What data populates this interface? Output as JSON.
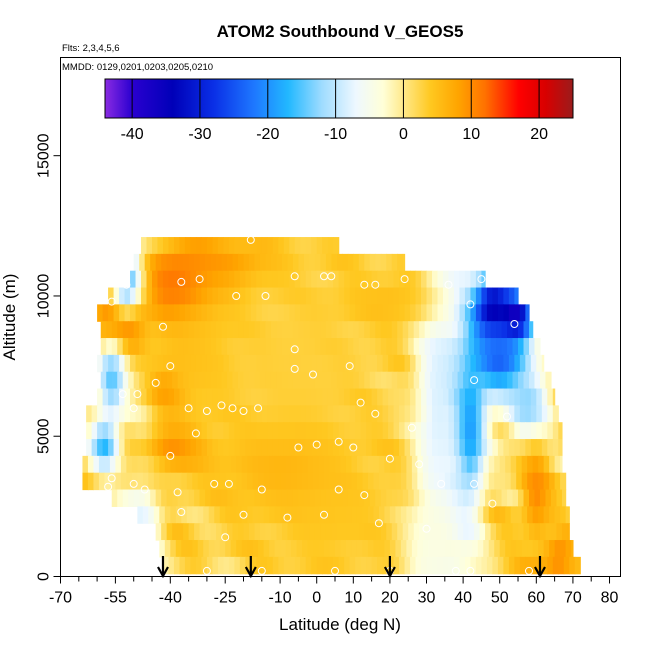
{
  "chart_data": {
    "type": "heatmap",
    "title": "ATOM2 Southbound V_GEOS5",
    "subtitle_line1": "Flts: 2,3,4,5,6",
    "subtitle_line2": "MMDD: 0129,0201,0203,0205,0210",
    "xlabel": "Latitude (deg N)",
    "ylabel": "Altitude (m)",
    "xlim": [
      -70,
      83
    ],
    "ylim": [
      0,
      18500
    ],
    "x_ticks": [
      -70,
      -55,
      -40,
      -25,
      -10,
      0,
      10,
      20,
      30,
      40,
      50,
      60,
      70,
      80
    ],
    "x_ticklabels": [
      "-70",
      "-55",
      "-40",
      "-25",
      "-10",
      "0",
      "10",
      "20",
      "30",
      "40",
      "50",
      "60",
      "70",
      "80"
    ],
    "y_ticks": [
      0,
      5000,
      10000,
      15000
    ],
    "y_ticklabels": [
      "0",
      "5000",
      "10000",
      "15000"
    ],
    "colorbar": {
      "min": -44,
      "max": 25,
      "ticks": [
        -40,
        -30,
        -20,
        -10,
        0,
        10,
        20
      ],
      "ticklabels": [
        "-40",
        "-30",
        "-20",
        "-10",
        "0",
        "10",
        "20"
      ],
      "stops": [
        {
          "v": -44,
          "c": "#8a2be2"
        },
        {
          "v": -40,
          "c": "#2a00d0"
        },
        {
          "v": -34,
          "c": "#0000b8"
        },
        {
          "v": -28,
          "c": "#0a2fe6"
        },
        {
          "v": -22,
          "c": "#1e78ff"
        },
        {
          "v": -17,
          "c": "#22b8ff"
        },
        {
          "v": -12,
          "c": "#9fdcff"
        },
        {
          "v": -7,
          "c": "#eef8ff"
        },
        {
          "v": -3,
          "c": "#ffffd8"
        },
        {
          "v": 0,
          "c": "#ffe98a"
        },
        {
          "v": 4,
          "c": "#ffc820"
        },
        {
          "v": 8,
          "c": "#ffa500"
        },
        {
          "v": 12,
          "c": "#ff7200"
        },
        {
          "v": 17,
          "c": "#ff0000"
        },
        {
          "v": 21,
          "c": "#d80000"
        },
        {
          "v": 25,
          "c": "#9b1c1c"
        }
      ]
    },
    "grid": false,
    "legend_placement": "top (colorbar)",
    "arrow_latitudes": [
      -42,
      -18,
      20,
      61
    ],
    "arrow_color": "#000000",
    "marker_color": "#ffffff",
    "data_extent": {
      "altitude_rows": [
        {
          "alt": 11800,
          "lat_min": -48,
          "lat_max": 6
        },
        {
          "alt": 11200,
          "lat_min": -50,
          "lat_max": 24
        },
        {
          "alt": 10600,
          "lat_min": -51,
          "lat_max": 46
        },
        {
          "alt": 10000,
          "lat_min": -57,
          "lat_max": 55
        },
        {
          "alt": 9400,
          "lat_min": -60,
          "lat_max": 58
        },
        {
          "alt": 8800,
          "lat_min": -59,
          "lat_max": 59
        },
        {
          "alt": 8200,
          "lat_min": -59,
          "lat_max": 61
        },
        {
          "alt": 7600,
          "lat_min": -60,
          "lat_max": 62
        },
        {
          "alt": 7000,
          "lat_min": -59,
          "lat_max": 64
        },
        {
          "alt": 6400,
          "lat_min": -60,
          "lat_max": 65
        },
        {
          "alt": 5800,
          "lat_min": -63,
          "lat_max": 66
        },
        {
          "alt": 5200,
          "lat_min": -63,
          "lat_max": 67
        },
        {
          "alt": 4600,
          "lat_min": -63,
          "lat_max": 67
        },
        {
          "alt": 4000,
          "lat_min": -64,
          "lat_max": 67
        },
        {
          "alt": 3400,
          "lat_min": -64,
          "lat_max": 68
        },
        {
          "alt": 2800,
          "lat_min": -56,
          "lat_max": 68
        },
        {
          "alt": 2200,
          "lat_min": -49,
          "lat_max": 69
        },
        {
          "alt": 1600,
          "lat_min": -44,
          "lat_max": 69
        },
        {
          "alt": 1000,
          "lat_min": -43,
          "lat_max": 70
        },
        {
          "alt": 400,
          "lat_min": -42,
          "lat_max": 72
        }
      ]
    },
    "features": [
      {
        "lat": -36,
        "alt": 10200,
        "v": 19,
        "slat": 11,
        "salt": 1500
      },
      {
        "lat": -53,
        "alt": 9000,
        "v": 18,
        "slat": 7,
        "salt": 1000
      },
      {
        "lat": -25,
        "alt": 11100,
        "v": 14,
        "slat": 16,
        "salt": 800
      },
      {
        "lat": -40,
        "alt": 6700,
        "v": 17,
        "slat": 5,
        "salt": 700
      },
      {
        "lat": -38,
        "alt": 4600,
        "v": 13,
        "slat": 9,
        "salt": 900
      },
      {
        "lat": -33,
        "alt": 7800,
        "v": 6,
        "slat": 15,
        "salt": 2500
      },
      {
        "lat": -52,
        "alt": 10700,
        "v": -18,
        "slat": 4,
        "salt": 1300
      },
      {
        "lat": -56,
        "alt": 7000,
        "v": -16,
        "slat": 4,
        "salt": 1400
      },
      {
        "lat": -58,
        "alt": 4700,
        "v": -18,
        "slat": 4,
        "salt": 900
      },
      {
        "lat": -48,
        "alt": 1800,
        "v": -9,
        "slat": 5,
        "salt": 1300
      },
      {
        "lat": -5,
        "alt": 7000,
        "v": 3,
        "slat": 30,
        "salt": 6500
      },
      {
        "lat": 5,
        "alt": 2000,
        "v": 4,
        "slat": 20,
        "salt": 2200
      },
      {
        "lat": 33,
        "alt": 6000,
        "v": -8,
        "slat": 6,
        "salt": 5500
      },
      {
        "lat": 42,
        "alt": 5200,
        "v": -19,
        "slat": 4,
        "salt": 2500
      },
      {
        "lat": 48,
        "alt": 9500,
        "v": -37,
        "slat": 6,
        "salt": 1300
      },
      {
        "lat": 54,
        "alt": 9200,
        "v": -41,
        "slat": 5,
        "salt": 900
      },
      {
        "lat": 50,
        "alt": 7700,
        "v": -24,
        "slat": 9,
        "salt": 1400
      },
      {
        "lat": 58,
        "alt": 6000,
        "v": -14,
        "slat": 6,
        "salt": 1200
      },
      {
        "lat": 32,
        "alt": 1200,
        "v": -4,
        "slat": 8,
        "salt": 1800
      },
      {
        "lat": 60,
        "alt": 3000,
        "v": 10,
        "slat": 4,
        "salt": 1800
      },
      {
        "lat": 66,
        "alt": 700,
        "v": 13,
        "slat": 5,
        "salt": 500
      },
      {
        "lat": 20,
        "alt": 9800,
        "v": 5,
        "slat": 14,
        "salt": 900
      },
      {
        "lat": -10,
        "alt": 3800,
        "v": 6,
        "slat": 18,
        "salt": 1500
      }
    ],
    "sample_points": [
      {
        "lat": -52,
        "alt": 11600
      },
      {
        "lat": -52,
        "alt": 10400
      },
      {
        "lat": -37,
        "alt": 10500
      },
      {
        "lat": -32,
        "alt": 10600
      },
      {
        "lat": -22,
        "alt": 10000
      },
      {
        "lat": -14,
        "alt": 10000
      },
      {
        "lat": -18,
        "alt": 12000
      },
      {
        "lat": -6,
        "alt": 10700
      },
      {
        "lat": 2,
        "alt": 10700
      },
      {
        "lat": 4,
        "alt": 10700
      },
      {
        "lat": 13,
        "alt": 10400
      },
      {
        "lat": 16,
        "alt": 10400
      },
      {
        "lat": 24,
        "alt": 10600
      },
      {
        "lat": 36,
        "alt": 10400
      },
      {
        "lat": 45,
        "alt": 10600
      },
      {
        "lat": 42,
        "alt": 9700
      },
      {
        "lat": -42,
        "alt": 8900
      },
      {
        "lat": -56,
        "alt": 9800
      },
      {
        "lat": -40,
        "alt": 7500
      },
      {
        "lat": -44,
        "alt": 6900
      },
      {
        "lat": -49,
        "alt": 6500
      },
      {
        "lat": -53,
        "alt": 6500
      },
      {
        "lat": -35,
        "alt": 6000
      },
      {
        "lat": -30,
        "alt": 5900
      },
      {
        "lat": -26,
        "alt": 6100
      },
      {
        "lat": -23,
        "alt": 6000
      },
      {
        "lat": -20,
        "alt": 5900
      },
      {
        "lat": -16,
        "alt": 6000
      },
      {
        "lat": -6,
        "alt": 8100
      },
      {
        "lat": -6,
        "alt": 7400
      },
      {
        "lat": -1,
        "alt": 7200
      },
      {
        "lat": 9,
        "alt": 7500
      },
      {
        "lat": 12,
        "alt": 6200
      },
      {
        "lat": 16,
        "alt": 5800
      },
      {
        "lat": 26,
        "alt": 5300
      },
      {
        "lat": 43,
        "alt": 7000
      },
      {
        "lat": 52,
        "alt": 5700
      },
      {
        "lat": -66,
        "alt": 5700
      },
      {
        "lat": -50,
        "alt": 6000
      },
      {
        "lat": -33,
        "alt": 5100
      },
      {
        "lat": -40,
        "alt": 4300
      },
      {
        "lat": -5,
        "alt": 4600
      },
      {
        "lat": 0,
        "alt": 4700
      },
      {
        "lat": 6,
        "alt": 4800
      },
      {
        "lat": 10,
        "alt": 4600
      },
      {
        "lat": 20,
        "alt": 4200
      },
      {
        "lat": 28,
        "alt": 4000
      },
      {
        "lat": -56,
        "alt": 3500
      },
      {
        "lat": -57,
        "alt": 3200
      },
      {
        "lat": -50,
        "alt": 3300
      },
      {
        "lat": -47,
        "alt": 3100
      },
      {
        "lat": -28,
        "alt": 3300
      },
      {
        "lat": -24,
        "alt": 3300
      },
      {
        "lat": -38,
        "alt": 3000
      },
      {
        "lat": -15,
        "alt": 3100
      },
      {
        "lat": 6,
        "alt": 3100
      },
      {
        "lat": 13,
        "alt": 2900
      },
      {
        "lat": 34,
        "alt": 3300
      },
      {
        "lat": 43,
        "alt": 3300
      },
      {
        "lat": 48,
        "alt": 2600
      },
      {
        "lat": -62,
        "alt": 2700
      },
      {
        "lat": -37,
        "alt": 2300
      },
      {
        "lat": -20,
        "alt": 2200
      },
      {
        "lat": -8,
        "alt": 2100
      },
      {
        "lat": 2,
        "alt": 2200
      },
      {
        "lat": 17,
        "alt": 1900
      },
      {
        "lat": -25,
        "alt": 1400
      },
      {
        "lat": -30,
        "alt": 200
      },
      {
        "lat": -15,
        "alt": 200
      },
      {
        "lat": 5,
        "alt": 200
      },
      {
        "lat": 20,
        "alt": 200
      },
      {
        "lat": 38,
        "alt": 200
      },
      {
        "lat": 42,
        "alt": 200
      },
      {
        "lat": 58,
        "alt": 200
      },
      {
        "lat": 30,
        "alt": 1700
      },
      {
        "lat": 54,
        "alt": 9000
      }
    ]
  }
}
